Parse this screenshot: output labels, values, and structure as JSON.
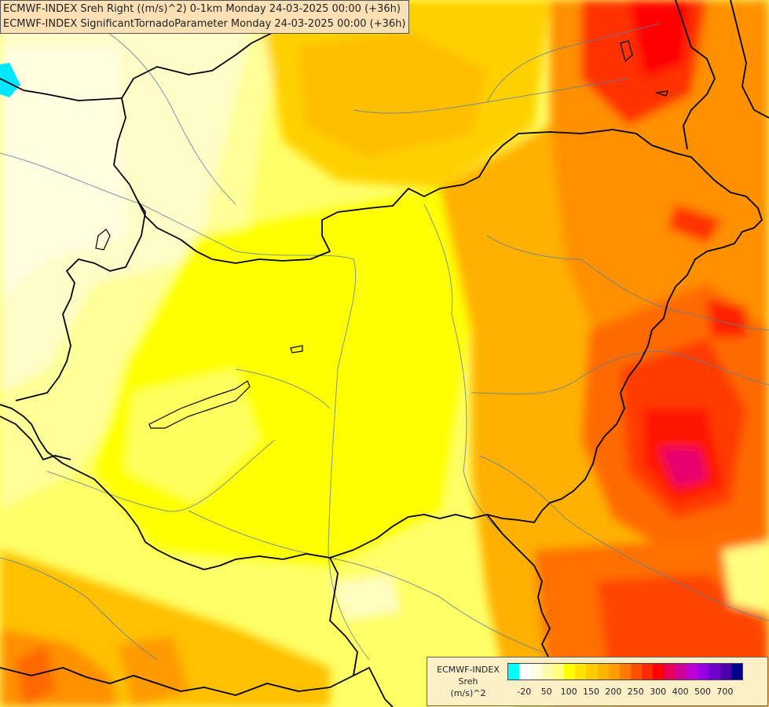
{
  "header": {
    "line1": "ECMWF-INDEX Sreh Right ((m/s)^2) 0-1km Monday 24-03-2025 00:00 (+36h)",
    "line2": "ECMWF-INDEX SignificantTornadoParameter Monday 24-03-2025 00:00 (+36h)"
  },
  "legend": {
    "title_line1": "ECMWF-INDEX",
    "title_line2": "Sreh",
    "title_line3": "(m/s)^2",
    "colors": [
      "#00ffff",
      "#ffffff",
      "#fffde0",
      "#fffab0",
      "#ffff80",
      "#ffff00",
      "#ffe400",
      "#ffcc00",
      "#ffb400",
      "#ff9c00",
      "#ff7800",
      "#ff5000",
      "#ff2800",
      "#ff0000",
      "#e6005a",
      "#d2009b",
      "#c000d0",
      "#9a00e6",
      "#7000cc",
      "#4a00aa",
      "#00008c"
    ],
    "labels": [
      "-20",
      "50",
      "100",
      "150",
      "200",
      "250",
      "300",
      "400",
      "500",
      "700"
    ]
  }
}
